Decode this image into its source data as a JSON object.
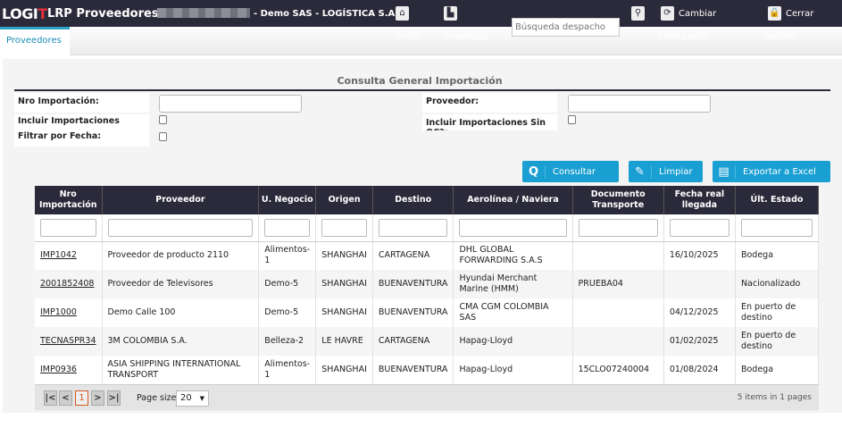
{
  "header": {
    "logo": "LOGIT",
    "app_title": "LRP Proveedores",
    "company": "- Demo SAS - LOGÍSTICA S.A.S.",
    "nav": [
      {
        "label": "Inicio",
        "icon": "home-icon"
      },
      {
        "label": "Empresas",
        "icon": "factory-icon"
      },
      {
        "label": "Cambiar contraseña",
        "line1": "Cambiar",
        "line2": "contraseña",
        "icon": "refresh-icon"
      },
      {
        "label": "Cerrar Sesión",
        "line1": "Cerrar",
        "line2": "Sesión",
        "icon": "lock-icon"
      }
    ],
    "search_placeholder": "Búsqueda despacho"
  },
  "tabs": [
    {
      "label": "Proveedores",
      "active": true
    }
  ],
  "form": {
    "title": "Consulta General Importación",
    "nro_label": "Nro Importación:",
    "nro_value": "",
    "proveedor_label": "Proveedor:",
    "proveedor_value": "",
    "incluir_label": "Incluir Importaciones Cerradas?:",
    "incluir_sin_oc_label": "Incluir Importaciones Sin OC?:",
    "filtrar_label": "Filtrar por Fecha:",
    "buttons": {
      "consultar": "Consultar",
      "limpiar": "Limpiar",
      "exportar": "Exportar a Excel"
    }
  },
  "table": {
    "columns": [
      "Nro Importación",
      "Proveedor",
      "U. Negocio",
      "Origen",
      "Destino",
      "Aerolínea / Naviera",
      "Documento Transporte",
      "Fecha real llegada",
      "Últ. Estado"
    ],
    "rows": [
      [
        "IMP1042",
        "Proveedor de producto 2110",
        "Alimentos-1",
        "SHANGHAI",
        "CARTAGENA",
        "DHL GLOBAL FORWARDING S.A.S",
        "",
        "16/10/2025",
        "Bodega"
      ],
      [
        "2001852408",
        "Proveedor de Televisores",
        "Demo-5",
        "SHANGHAI",
        "BUENAVENTURA",
        "Hyundai Merchant Marine (HMM)",
        "PRUEBA04",
        "",
        "Nacionalizado"
      ],
      [
        "IMP1000",
        "Demo Calle 100",
        "Demo-5",
        "SHANGHAI",
        "BUENAVENTURA",
        "CMA CGM COLOMBIA SAS",
        "",
        "04/12/2025",
        "En puerto de destino"
      ],
      [
        "TECNASPR34",
        "3M COLOMBIA S.A.",
        "Belleza-2",
        "LE HAVRE",
        "CARTAGENA",
        "Hapag-Lloyd",
        "",
        "01/02/2025",
        "En puerto de destino"
      ],
      [
        "IMP0936",
        "ASIA SHIPPING INTERNATIONAL TRANSPORT",
        "Alimentos-1",
        "SHANGHAI",
        "BUENAVENTURA",
        "Hapag-Lloyd",
        "15CLO07240004",
        "01/08/2024",
        "Bodega"
      ]
    ]
  },
  "pager": {
    "current_page": "1",
    "page_size_label": "Page size:",
    "page_size": "20",
    "summary": "5 items in 1 pages"
  }
}
